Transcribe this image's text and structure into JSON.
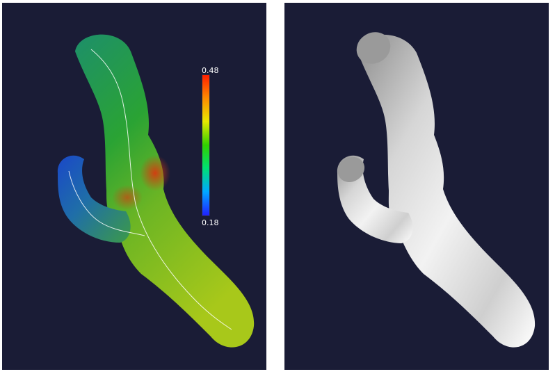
{
  "colors": {
    "background": "#1a1c36",
    "divider": "#ffffff",
    "surface_low": "#1e50c0",
    "surface_mid": "#2ea832",
    "surface_high": "#d43a12",
    "surface_yellow": "#a8c81a",
    "mesh_gray": "#d8d8d8",
    "centerline": "#ffffff"
  },
  "left_view": {
    "scalar_bar": {
      "max_label": "0.48",
      "min_label": "0.18",
      "max_value": 0.48,
      "min_value": 0.18,
      "colormap": [
        "#2020ff",
        "#00a8ff",
        "#00e070",
        "#30d000",
        "#e8e800",
        "#ff8800",
        "#ff2000"
      ]
    }
  },
  "right_view": {}
}
